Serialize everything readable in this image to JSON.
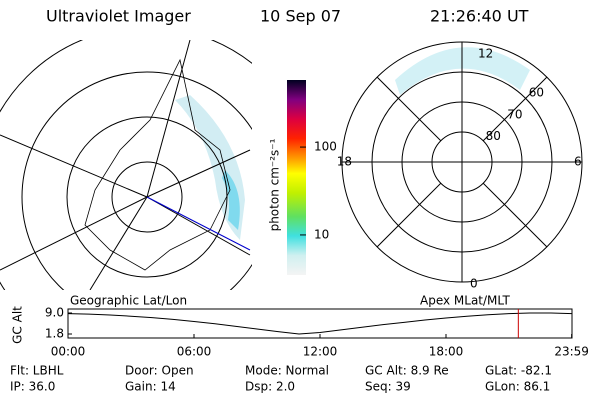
{
  "header": {
    "title": "Ultraviolet Imager",
    "date": "10 Sep 07",
    "time": "21:26:40 UT"
  },
  "geo_map": {
    "label": "Geographic Lat/Lon"
  },
  "mag_map": {
    "label": "Apex MLat/MLT",
    "mlt_labels": [
      "12",
      "18",
      "6",
      "0"
    ],
    "mlat_rings": [
      80,
      70,
      60
    ],
    "outer_mlat": 50
  },
  "colorbar": {
    "label": "photon cm⁻²s⁻¹",
    "scale": "log",
    "clim": [
      3.5,
      580
    ],
    "ticks": [
      10,
      100
    ]
  },
  "altitude_plot": {
    "ylabel": "GC Alt",
    "ylim": [
      1.8,
      9.0
    ],
    "yticks": [
      {
        "value": 9.0,
        "label": "9.0"
      },
      {
        "value": 1.8,
        "label": "1.8"
      }
    ],
    "xlim": [
      0,
      24
    ],
    "xticks": [
      {
        "value": 0,
        "label": "00:00"
      },
      {
        "value": 6,
        "label": "06:00"
      },
      {
        "value": 12,
        "label": "12:00"
      },
      {
        "value": 18,
        "label": "18:00"
      },
      {
        "value": 23.983,
        "label": "23:59"
      }
    ],
    "x": [
      0,
      1,
      2,
      3,
      4,
      5,
      6,
      7,
      8,
      9,
      10,
      11,
      12,
      13,
      14,
      15,
      16,
      17,
      18,
      19,
      20,
      21,
      22,
      23,
      24
    ],
    "values": [
      8.8,
      8.6,
      8.3,
      7.9,
      7.4,
      6.8,
      6.1,
      5.3,
      4.4,
      3.5,
      2.6,
      1.8,
      2.3,
      3.2,
      4.1,
      5.0,
      5.8,
      6.6,
      7.3,
      7.9,
      8.4,
      8.8,
      9.0,
      9.0,
      8.8
    ],
    "marker_hour": 21.444,
    "marker_color": "#cc0000"
  },
  "info": [
    [
      "Flt: LBHL",
      "Door: Open",
      "Mode: Normal",
      "GC Alt: 8.9 Re",
      "GLat: -82.1"
    ],
    [
      "IP: 36.0",
      "Gain: 14",
      "Dsp:   2.0",
      "Seq: 39",
      "GLon:  86.1"
    ]
  ]
}
